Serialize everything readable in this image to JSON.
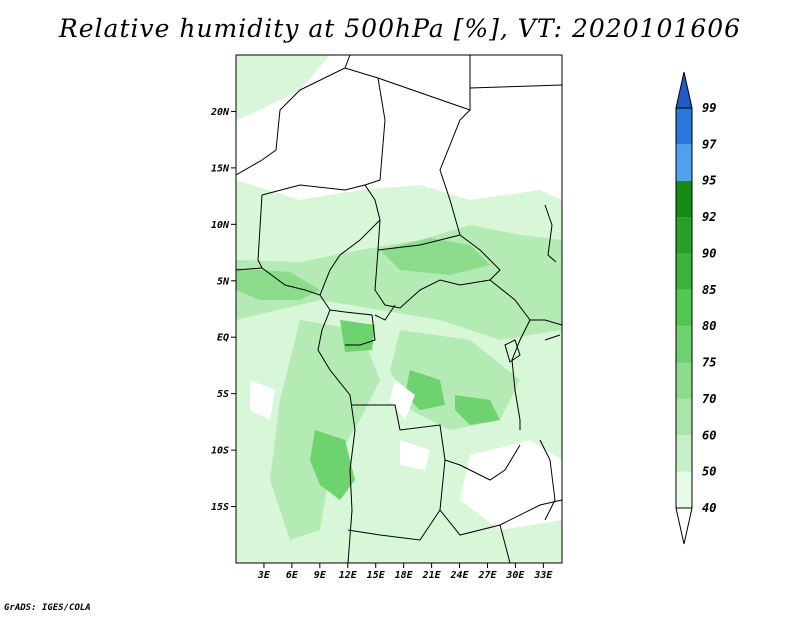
{
  "title": "Relative humidity at 500hPa [%], VT: 2020101606",
  "credit": "GrADS: IGES/COLA",
  "map": {
    "lon_range": [
      0,
      35
    ],
    "lat_range": [
      -20,
      25
    ],
    "lat_ticks": [
      {
        "value": 20,
        "label": "20N"
      },
      {
        "value": 15,
        "label": "15N"
      },
      {
        "value": 10,
        "label": "10N"
      },
      {
        "value": 5,
        "label": "5N"
      },
      {
        "value": 0,
        "label": "EQ"
      },
      {
        "value": -5,
        "label": "5S"
      },
      {
        "value": -10,
        "label": "10S"
      },
      {
        "value": -15,
        "label": "15S"
      }
    ],
    "lon_ticks": [
      {
        "value": 3,
        "label": "3E"
      },
      {
        "value": 6,
        "label": "6E"
      },
      {
        "value": 9,
        "label": "9E"
      },
      {
        "value": 12,
        "label": "12E"
      },
      {
        "value": 15,
        "label": "15E"
      },
      {
        "value": 18,
        "label": "18E"
      },
      {
        "value": 21,
        "label": "21E"
      },
      {
        "value": 24,
        "label": "24E"
      },
      {
        "value": 27,
        "label": "27E"
      },
      {
        "value": 30,
        "label": "30E"
      },
      {
        "value": 33,
        "label": "33E"
      }
    ]
  },
  "colorbar": {
    "levels": [
      "40",
      "50",
      "60",
      "70",
      "75",
      "80",
      "85",
      "90",
      "92",
      "95",
      "97",
      "99"
    ],
    "colors": [
      "#e6fce6",
      "#c8f0c8",
      "#aae6aa",
      "#8cdc8c",
      "#6ed26e",
      "#50c850",
      "#3cb43c",
      "#28a028",
      "#148c14",
      "#50a0f0",
      "#2878dc",
      "#1e5ac8"
    ],
    "under_color": "#ffffff",
    "over_color": "#1e5ac8"
  },
  "colors": {
    "land_background": "#ffffff",
    "humid_light": "#dff8df",
    "humid_mid": "#9ee29e",
    "humid_dark": "#3cb43c",
    "border": "#000000"
  }
}
